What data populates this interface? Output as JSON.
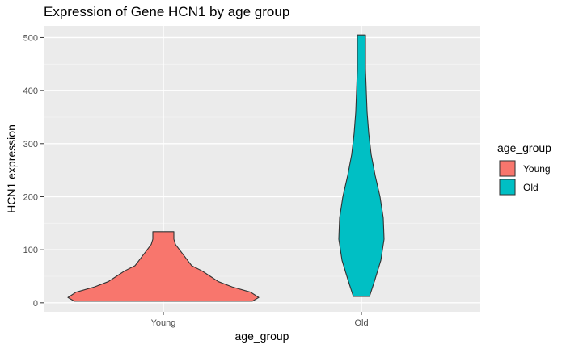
{
  "chart_data": {
    "type": "violin",
    "title": "Expression of Gene HCN1 by age group",
    "xlabel": "age_group",
    "ylabel": "HCN1 expression",
    "categories": [
      "Young",
      "Old"
    ],
    "ylim": [
      -17,
      522
    ],
    "yticks": [
      0,
      100,
      200,
      300,
      400,
      500
    ],
    "grid": true,
    "legend": {
      "title": "age_group",
      "position": "right",
      "entries": [
        {
          "label": "Young",
          "color": "#F8766D"
        },
        {
          "label": "Old",
          "color": "#00BFC4"
        }
      ]
    },
    "series": [
      {
        "category": "Young",
        "color": "#F8766D",
        "min": 3,
        "max": 134,
        "profile": [
          [
            3,
            110
          ],
          [
            10,
            118
          ],
          [
            20,
            108
          ],
          [
            30,
            85
          ],
          [
            40,
            68
          ],
          [
            50,
            58
          ],
          [
            60,
            48
          ],
          [
            70,
            35
          ],
          [
            80,
            30
          ],
          [
            90,
            25
          ],
          [
            100,
            20
          ],
          [
            110,
            15
          ],
          [
            120,
            13
          ],
          [
            134,
            13
          ]
        ]
      },
      {
        "category": "Old",
        "color": "#00BFC4",
        "min": 12,
        "max": 505,
        "profile": [
          [
            12,
            10
          ],
          [
            40,
            16
          ],
          [
            80,
            24
          ],
          [
            120,
            28
          ],
          [
            160,
            27
          ],
          [
            200,
            23
          ],
          [
            240,
            17
          ],
          [
            280,
            12
          ],
          [
            320,
            9
          ],
          [
            360,
            7
          ],
          [
            400,
            6
          ],
          [
            440,
            5
          ],
          [
            480,
            5
          ],
          [
            505,
            5
          ]
        ]
      }
    ]
  }
}
